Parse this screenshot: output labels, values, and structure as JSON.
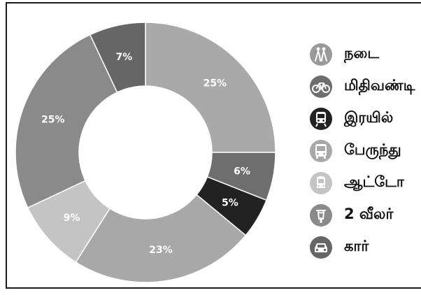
{
  "chart_data": {
    "type": "pie",
    "donut": true,
    "categories": [
      "நடை",
      "மிதிவண்டி",
      "இரயில்",
      "பேருந்து",
      "ஆட்டோ",
      "2 வீலர்",
      "கார்"
    ],
    "values": [
      25,
      6,
      5,
      23,
      9,
      25,
      7
    ],
    "labels": [
      "25%",
      "6%",
      "5%",
      "23%",
      "9%",
      "25%",
      "7%"
    ],
    "colors": [
      "#a9a9a9",
      "#6e6e6e",
      "#222222",
      "#a8a8a8",
      "#c4c4c4",
      "#8a8a8a",
      "#666666"
    ],
    "start_angle_deg": 0,
    "direction": "clockwise"
  },
  "legend": {
    "items": [
      {
        "label": "நடை",
        "icon": "walking-people-icon",
        "icon_color": "#9a9a9a"
      },
      {
        "label": "மிதிவண்டி",
        "icon": "bicycle-icon",
        "icon_color": "#6e6e6e"
      },
      {
        "label": "இரயில்",
        "icon": "train-icon",
        "icon_color": "#222222"
      },
      {
        "label": "பேருந்து",
        "icon": "bus-icon",
        "icon_color": "#a8a8a8"
      },
      {
        "label": "ஆட்டோ",
        "icon": "auto-rickshaw-icon",
        "icon_color": "#c4c4c4"
      },
      {
        "label": "2 வீலர்",
        "icon": "two-wheeler-icon",
        "icon_color": "#8a8a8a"
      },
      {
        "label": "கார்",
        "icon": "car-icon",
        "icon_color": "#666666"
      }
    ]
  }
}
